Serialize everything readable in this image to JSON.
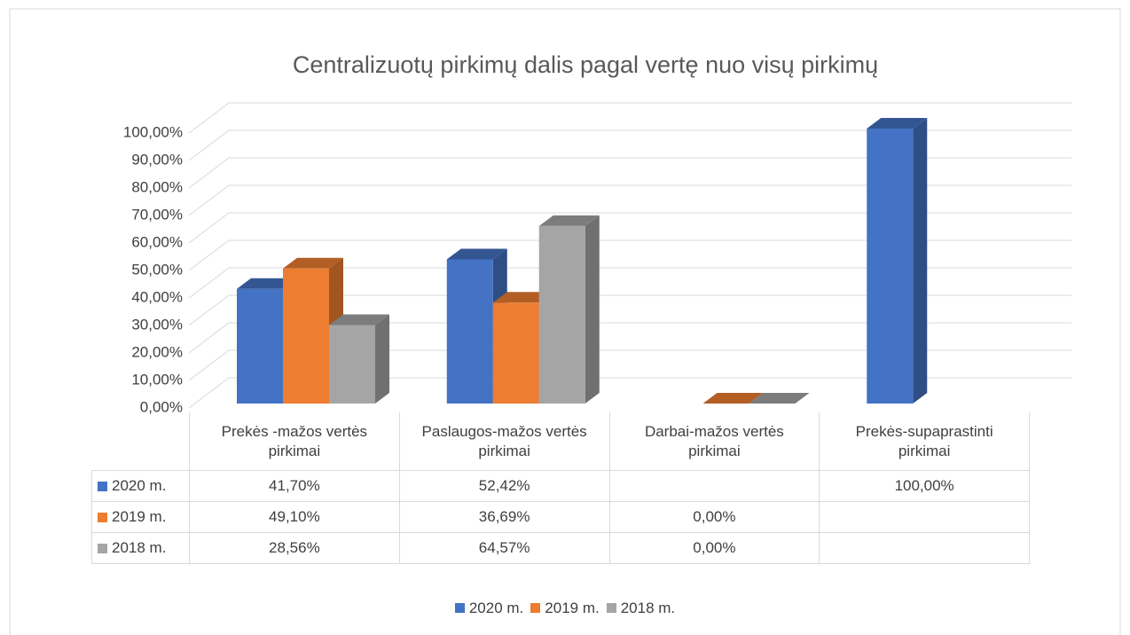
{
  "chart_data": {
    "type": "bar3d",
    "title": "Centralizuotų pirkimų dalis  pagal vertę nuo visų pirkimų",
    "categories": [
      "Prekės -mažos vertės pirkimai",
      "Paslaugos-mažos vertės pirkimai",
      "Darbai-mažos vertės pirkimai",
      "Prekės-supaprastinti pirkimai"
    ],
    "series": [
      {
        "name": "2020 m.",
        "color": "#4472c4",
        "values": [
          41.7,
          52.42,
          null,
          100.0
        ],
        "value_labels": [
          "41,70%",
          "52,42%",
          null,
          "100,00%"
        ]
      },
      {
        "name": "2019 m.",
        "color": "#ed7d31",
        "values": [
          49.1,
          36.69,
          0.0,
          null
        ],
        "value_labels": [
          "49,10%",
          "36,69%",
          "0,00%",
          null
        ]
      },
      {
        "name": "2018 m.",
        "color": "#a5a5a5",
        "values": [
          28.56,
          64.57,
          0.0,
          null
        ],
        "value_labels": [
          "28,56%",
          "64,57%",
          "0,00%",
          null
        ]
      }
    ],
    "ylim": [
      0,
      100
    ],
    "yticks": [
      {
        "value": 0,
        "label": "0,00%"
      },
      {
        "value": 10,
        "label": "10,00%"
      },
      {
        "value": 20,
        "label": "20,00%"
      },
      {
        "value": 30,
        "label": "30,00%"
      },
      {
        "value": 40,
        "label": "40,00%"
      },
      {
        "value": 50,
        "label": "50,00%"
      },
      {
        "value": 60,
        "label": "60,00%"
      },
      {
        "value": 70,
        "label": "70,00%"
      },
      {
        "value": 80,
        "label": "80,00%"
      },
      {
        "value": 90,
        "label": "90,00%"
      },
      {
        "value": 100,
        "label": "100,00%"
      }
    ],
    "grid": true,
    "legend": "bottom",
    "data_table": true
  }
}
